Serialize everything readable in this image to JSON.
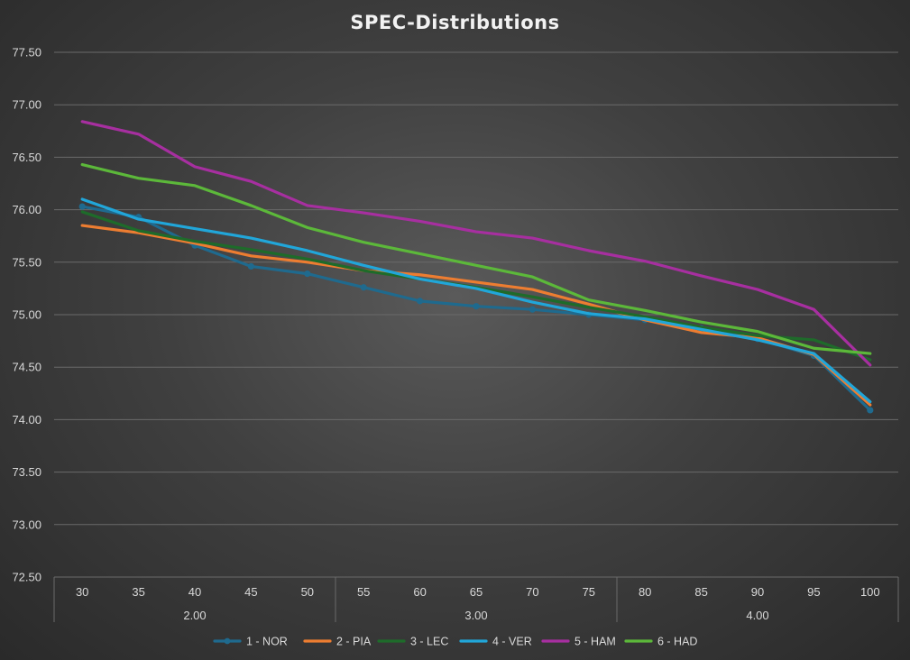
{
  "chart_data": {
    "type": "line",
    "title": "SPEC-Distributions",
    "x": [
      "30",
      "35",
      "40",
      "45",
      "50",
      "55",
      "60",
      "65",
      "70",
      "75",
      "80",
      "85",
      "90",
      "95",
      "100"
    ],
    "groups": [
      {
        "label": "2.00",
        "span": 5
      },
      {
        "label": "3.00",
        "span": 5
      },
      {
        "label": "4.00",
        "span": 5
      }
    ],
    "ylim": [
      72.5,
      77.5
    ],
    "yticks": [
      "72.50",
      "73.00",
      "73.50",
      "74.00",
      "74.50",
      "75.00",
      "75.50",
      "76.00",
      "76.50",
      "77.00",
      "77.50"
    ],
    "grid": true,
    "legend_position": "bottom",
    "series": [
      {
        "name": "1 - NOR",
        "color": "#1f6a8e",
        "markers": true,
        "values": [
          76.03,
          75.93,
          75.66,
          75.46,
          75.39,
          75.26,
          75.13,
          75.08,
          75.05,
          75.0,
          74.95,
          74.87,
          74.77,
          74.61,
          74.09
        ]
      },
      {
        "name": "2 - PIA",
        "color": "#ed7d31",
        "markers": false,
        "values": [
          75.85,
          75.78,
          75.68,
          75.56,
          75.5,
          75.42,
          75.38,
          75.31,
          75.24,
          75.1,
          74.95,
          74.83,
          74.78,
          74.62,
          74.14
        ]
      },
      {
        "name": "3 - LEC",
        "color": "#1e6b2a",
        "markers": false,
        "values": [
          75.98,
          75.8,
          75.7,
          75.62,
          75.53,
          75.42,
          75.34,
          75.26,
          75.17,
          75.07,
          74.98,
          74.88,
          74.8,
          74.76,
          74.57
        ]
      },
      {
        "name": "4 - VER",
        "color": "#21a6d9",
        "markers": false,
        "values": [
          76.1,
          75.91,
          75.82,
          75.73,
          75.61,
          75.47,
          75.34,
          75.25,
          75.12,
          75.01,
          74.96,
          74.86,
          74.76,
          74.63,
          74.17
        ]
      },
      {
        "name": "5 - HAM",
        "color": "#a72fa0",
        "markers": false,
        "values": [
          76.84,
          76.72,
          76.41,
          76.27,
          76.04,
          75.97,
          75.89,
          75.79,
          75.73,
          75.61,
          75.51,
          75.37,
          75.24,
          75.05,
          74.52
        ]
      },
      {
        "name": "6 - HAD",
        "color": "#5cb83a",
        "markers": false,
        "values": [
          76.43,
          76.3,
          76.23,
          76.04,
          75.83,
          75.69,
          75.58,
          75.47,
          75.36,
          75.14,
          75.04,
          74.93,
          74.84,
          74.68,
          74.63
        ]
      }
    ]
  }
}
